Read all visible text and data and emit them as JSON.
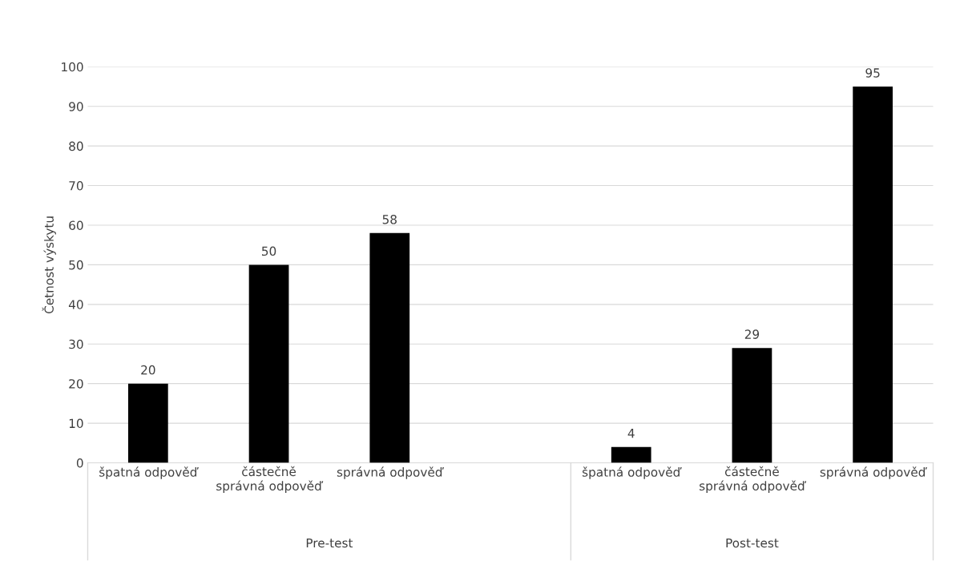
{
  "chart_data": {
    "type": "bar",
    "ylabel": "Četnost výskytu",
    "categories": [
      "špatná odpověď",
      "částečně správná odpověď",
      "správná odpověď",
      null,
      "špatná odpověď",
      "částečně správná odpověď",
      "správná odpověď"
    ],
    "values": [
      20,
      50,
      58,
      null,
      4,
      29,
      95
    ],
    "color": "#000000",
    "ylim": [
      0,
      100
    ],
    "yticks": [
      0,
      10,
      20,
      30,
      40,
      50,
      60,
      70,
      80,
      90,
      100
    ],
    "grid": "y",
    "data_labels": true,
    "annotations": [
      "Pre-test",
      "Post-test"
    ]
  }
}
